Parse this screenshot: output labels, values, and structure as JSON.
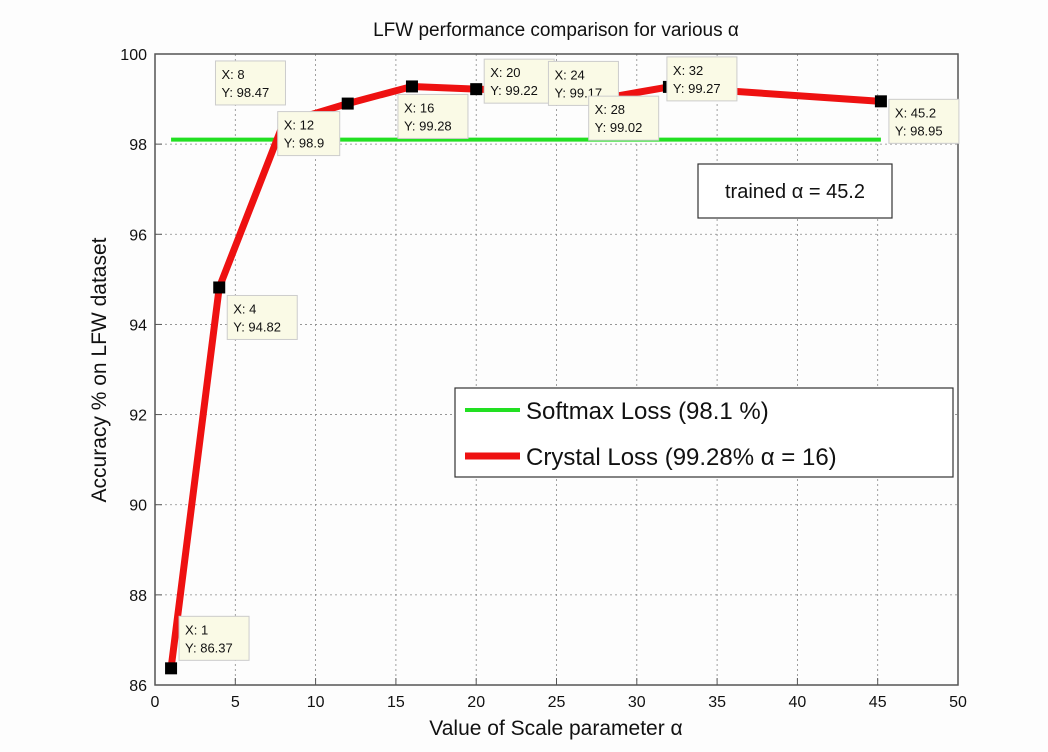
{
  "chart_data": {
    "type": "line",
    "title": "LFW performance comparison for various α",
    "xlabel": "Value of Scale parameter α",
    "ylabel": "Accuracy % on LFW dataset",
    "xlim": [
      0,
      50
    ],
    "ylim": [
      86,
      100
    ],
    "xticks": [
      0,
      5,
      10,
      15,
      20,
      25,
      30,
      35,
      40,
      45,
      50
    ],
    "yticks": [
      86,
      88,
      90,
      92,
      94,
      96,
      98,
      100
    ],
    "grid": true,
    "legend_position": "center-right",
    "series": [
      {
        "name": "Softmax Loss (98.1 %)",
        "color": "#22e022",
        "x": [
          1,
          45.2
        ],
        "y": [
          98.1,
          98.1
        ]
      },
      {
        "name": "Crystal Loss (99.28% α = 16)",
        "color": "#ee1111",
        "x": [
          1,
          4,
          8,
          12,
          16,
          20,
          24,
          28,
          32,
          45.2
        ],
        "y": [
          86.37,
          94.82,
          98.47,
          98.9,
          99.28,
          99.22,
          99.17,
          99.02,
          99.27,
          98.95
        ]
      }
    ],
    "datatips": [
      {
        "x": "1",
        "y": "86.37"
      },
      {
        "x": "4",
        "y": "94.82"
      },
      {
        "x": "8",
        "y": "98.47"
      },
      {
        "x": "12",
        "y": "98.9"
      },
      {
        "x": "16",
        "y": "99.28"
      },
      {
        "x": "20",
        "y": "99.22"
      },
      {
        "x": "24",
        "y": "99.17"
      },
      {
        "x": "28",
        "y": "99.02"
      },
      {
        "x": "32",
        "y": "99.27"
      },
      {
        "x": "45.2",
        "y": "98.95"
      }
    ],
    "annotation": "trained α = 45.2"
  }
}
